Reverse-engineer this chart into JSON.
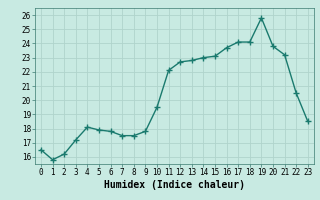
{
  "x": [
    0,
    1,
    2,
    3,
    4,
    5,
    6,
    7,
    8,
    9,
    10,
    11,
    12,
    13,
    14,
    15,
    16,
    17,
    18,
    19,
    20,
    21,
    22,
    23
  ],
  "y": [
    16.5,
    15.8,
    16.2,
    17.2,
    18.1,
    17.9,
    17.8,
    17.5,
    17.5,
    17.8,
    19.5,
    22.1,
    22.7,
    22.8,
    23.0,
    23.1,
    23.7,
    24.1,
    24.1,
    25.8,
    23.8,
    23.2,
    20.5,
    18.5
  ],
  "xlabel": "Humidex (Indice chaleur)",
  "ylim": [
    15.5,
    26.5
  ],
  "xlim": [
    -0.5,
    23.5
  ],
  "yticks": [
    16,
    17,
    18,
    19,
    20,
    21,
    22,
    23,
    24,
    25,
    26
  ],
  "xtick_labels": [
    "0",
    "1",
    "2",
    "3",
    "4",
    "5",
    "6",
    "7",
    "8",
    "9",
    "10",
    "11",
    "12",
    "13",
    "14",
    "15",
    "16",
    "17",
    "18",
    "19",
    "20",
    "21",
    "22",
    "23"
  ],
  "line_color": "#1a7a6e",
  "marker": "+",
  "marker_size": 4,
  "marker_lw": 1.0,
  "line_width": 1.0,
  "bg_color": "#c8eae2",
  "grid_color": "#b0d4cc",
  "axes_bg": "#c8eae2",
  "tick_fontsize": 5.5,
  "xlabel_fontsize": 7,
  "ylabel_fontsize": 6
}
